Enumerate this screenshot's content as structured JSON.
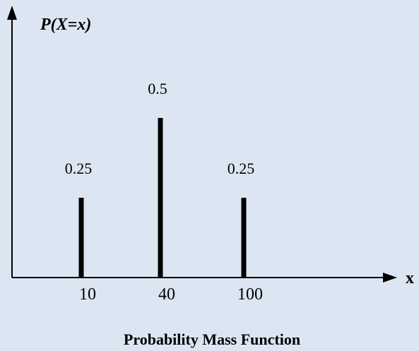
{
  "chart_data": {
    "type": "bar",
    "title": "Probability Mass Function",
    "xlabel": "x",
    "ylabel": "P(X=x)",
    "categories": [
      "10",
      "40",
      "100"
    ],
    "values": [
      0.25,
      0.5,
      0.25
    ],
    "data_labels": [
      "0.25",
      "0.5",
      "0.25"
    ],
    "ylim": [
      0,
      0.75
    ],
    "grid": false,
    "legend": "none"
  },
  "colors": {
    "background": "#dce6f2",
    "ink": "#000000"
  }
}
